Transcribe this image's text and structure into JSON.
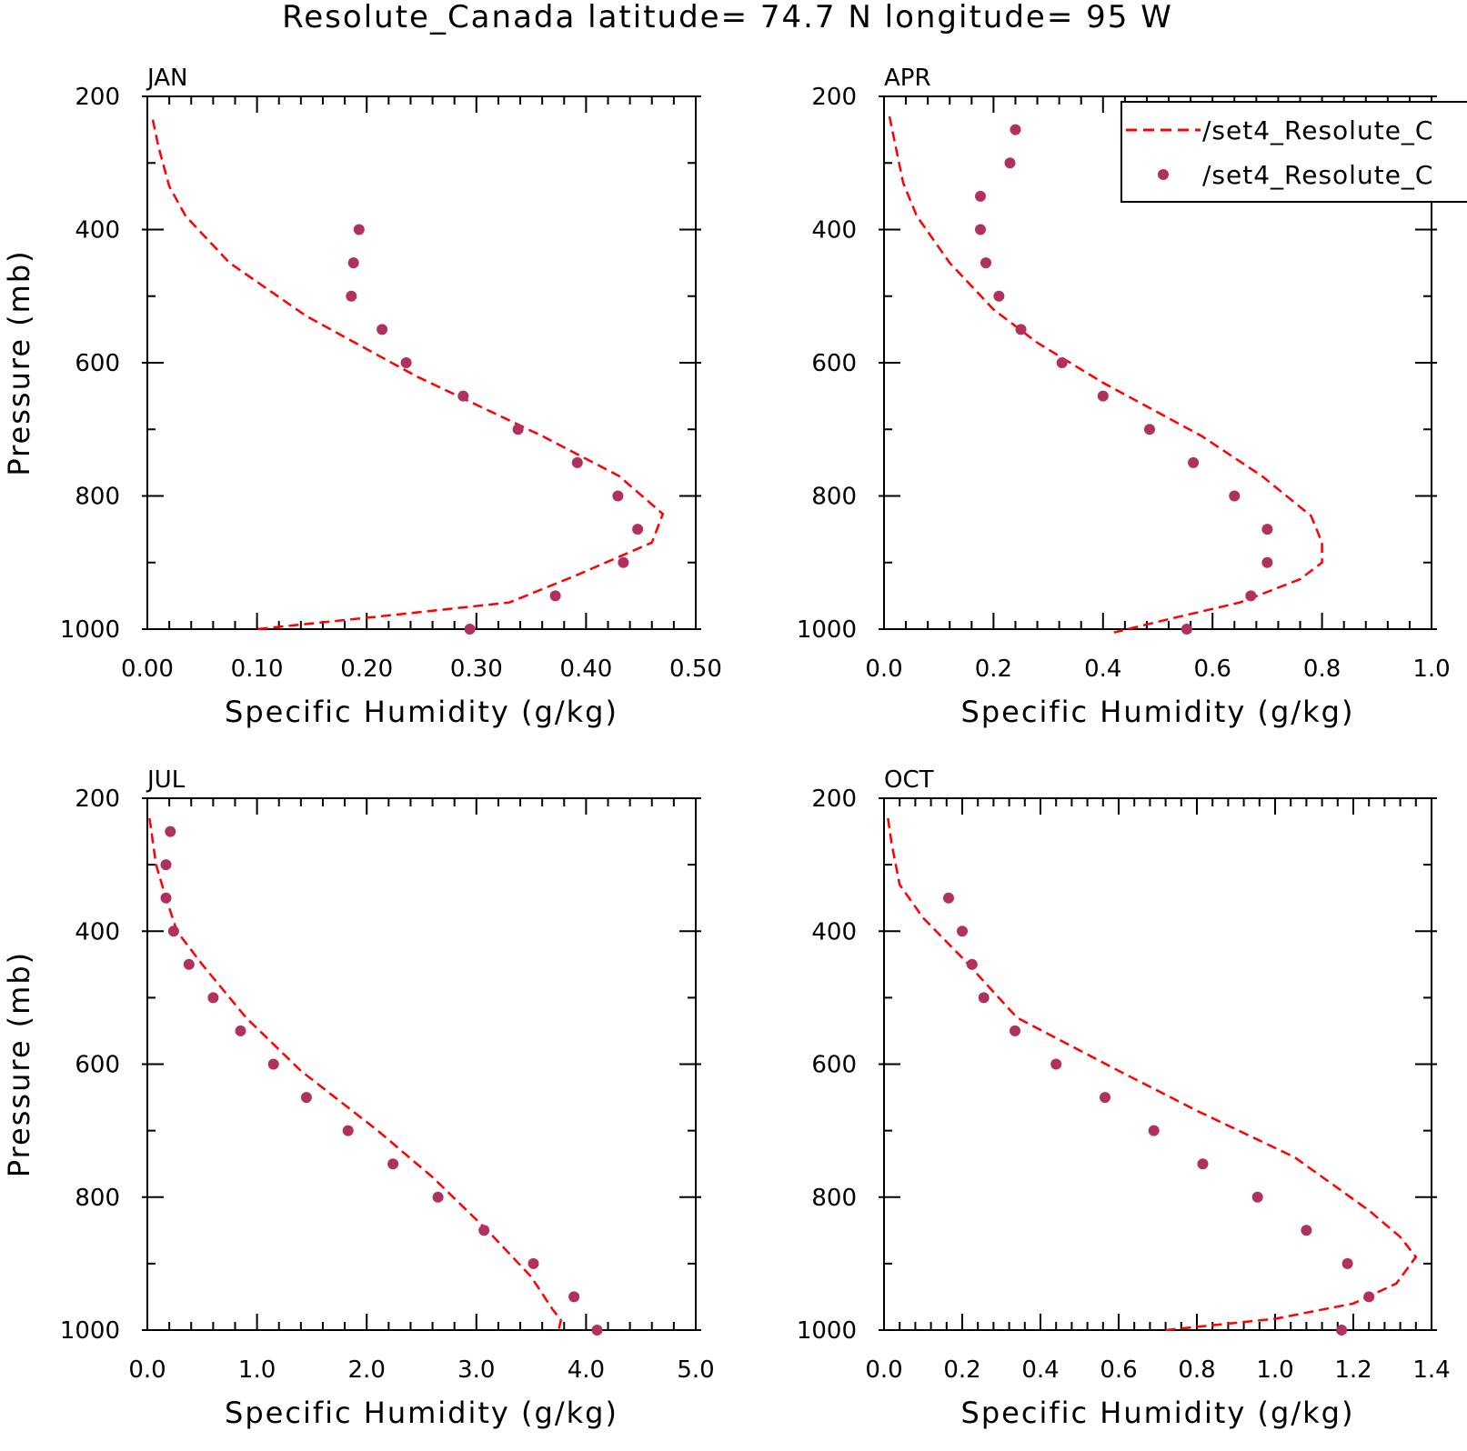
{
  "title": "Resolute_Canada  latitude= 74.7 N longitude= 95 W",
  "colors": {
    "model": "#ff0000",
    "obs": "#b03060",
    "axis": "#000000"
  },
  "legend": {
    "model_label": "/set4_Resolute_C",
    "obs_label": "/set4_Resolute_C",
    "placement": "top-right"
  },
  "chart_data": [
    {
      "type": "line",
      "panel": "JAN",
      "xlabel": "Specific Humidity (g/kg)",
      "ylabel": "Pressure (mb)",
      "xlim": [
        0.0,
        0.5
      ],
      "ylim": [
        1000,
        200
      ],
      "xticks": [
        "0.00",
        "0.10",
        "0.20",
        "0.30",
        "0.40",
        "0.50"
      ],
      "yticks": [
        "200",
        "400",
        "600",
        "800",
        "1000"
      ],
      "model": {
        "x": [
          0.005,
          0.01,
          0.02,
          0.035,
          0.075,
          0.145,
          0.245,
          0.36,
          0.43,
          0.47,
          0.46,
          0.39,
          0.33,
          0.2,
          0.1
        ],
        "y": [
          235,
          275,
          335,
          380,
          450,
          530,
          620,
          710,
          770,
          827,
          870,
          920,
          960,
          983,
          1000
        ]
      },
      "obs": {
        "x": [
          0.193,
          0.188,
          0.186,
          0.214,
          0.236,
          0.288,
          0.338,
          0.392,
          0.429,
          0.447,
          0.434,
          0.372,
          0.294
        ],
        "y": [
          400,
          450,
          500,
          550,
          600,
          650,
          700,
          750,
          800,
          850,
          900,
          950,
          1000
        ]
      }
    },
    {
      "type": "line",
      "panel": "APR",
      "xlabel": "Specific Humidity (g/kg)",
      "ylabel": "",
      "xlim": [
        0.0,
        1.0
      ],
      "ylim": [
        1000,
        200
      ],
      "xticks": [
        "0.0",
        "0.2",
        "0.4",
        "0.6",
        "0.8",
        "1.0"
      ],
      "yticks": [
        "200",
        "400",
        "600",
        "800",
        "1000"
      ],
      "model": {
        "x": [
          0.01,
          0.02,
          0.035,
          0.06,
          0.12,
          0.2,
          0.28,
          0.4,
          0.58,
          0.69,
          0.78,
          0.8,
          0.8,
          0.76,
          0.65,
          0.52,
          0.42
        ],
        "y": [
          230,
          270,
          330,
          380,
          450,
          520,
          570,
          630,
          710,
          770,
          830,
          870,
          900,
          925,
          960,
          985,
          1005
        ]
      },
      "obs": {
        "x": [
          0.24,
          0.23,
          0.176,
          0.176,
          0.186,
          0.21,
          0.25,
          0.325,
          0.4,
          0.485,
          0.565,
          0.64,
          0.7,
          0.7,
          0.67,
          0.553
        ],
        "y": [
          250,
          300,
          350,
          400,
          450,
          500,
          550,
          600,
          650,
          700,
          750,
          800,
          850,
          900,
          950,
          1000
        ]
      }
    },
    {
      "type": "line",
      "panel": "JUL",
      "xlabel": "Specific Humidity (g/kg)",
      "ylabel": "Pressure (mb)",
      "xlim": [
        0.0,
        5.0
      ],
      "ylim": [
        1000,
        200
      ],
      "xticks": [
        "0.0",
        "1.0",
        "2.0",
        "3.0",
        "4.0",
        "5.0"
      ],
      "yticks": [
        "200",
        "400",
        "600",
        "800",
        "1000"
      ],
      "model": {
        "x": [
          0.02,
          0.08,
          0.17,
          0.27,
          0.5,
          0.9,
          1.4,
          2.1,
          2.6,
          3.1,
          3.5,
          3.7,
          3.77,
          3.75
        ],
        "y": [
          230,
          300,
          350,
          400,
          450,
          530,
          610,
          700,
          770,
          850,
          920,
          970,
          985,
          1000
        ]
      },
      "obs": {
        "x": [
          0.21,
          0.17,
          0.17,
          0.24,
          0.38,
          0.6,
          0.85,
          1.15,
          1.45,
          1.83,
          2.24,
          2.65,
          3.07,
          3.52,
          3.89,
          4.1
        ],
        "y": [
          250,
          300,
          350,
          400,
          450,
          500,
          550,
          600,
          650,
          700,
          750,
          800,
          850,
          900,
          950,
          1000
        ]
      }
    },
    {
      "type": "line",
      "panel": "OCT",
      "xlabel": "Specific Humidity (g/kg)",
      "ylabel": "",
      "xlim": [
        0.0,
        1.4
      ],
      "ylim": [
        1000,
        200
      ],
      "xticks": [
        "0.0",
        "0.2",
        "0.4",
        "0.6",
        "0.8",
        "1.0",
        "1.2",
        "1.4"
      ],
      "yticks": [
        "200",
        "400",
        "600",
        "800",
        "1000"
      ],
      "model": {
        "x": [
          0.01,
          0.02,
          0.04,
          0.1,
          0.2,
          0.34,
          0.6,
          0.8,
          1.05,
          1.24,
          1.32,
          1.36,
          1.31,
          1.2,
          1.0,
          0.72
        ],
        "y": [
          230,
          270,
          330,
          380,
          440,
          530,
          610,
          670,
          740,
          820,
          860,
          890,
          930,
          960,
          983,
          1000
        ]
      },
      "obs": {
        "x": [
          0.165,
          0.2,
          0.225,
          0.255,
          0.335,
          0.44,
          0.565,
          0.69,
          0.815,
          0.955,
          1.08,
          1.185,
          1.24,
          1.17
        ],
        "y": [
          350,
          400,
          450,
          500,
          550,
          600,
          650,
          700,
          750,
          800,
          850,
          900,
          950,
          1000
        ]
      }
    }
  ]
}
